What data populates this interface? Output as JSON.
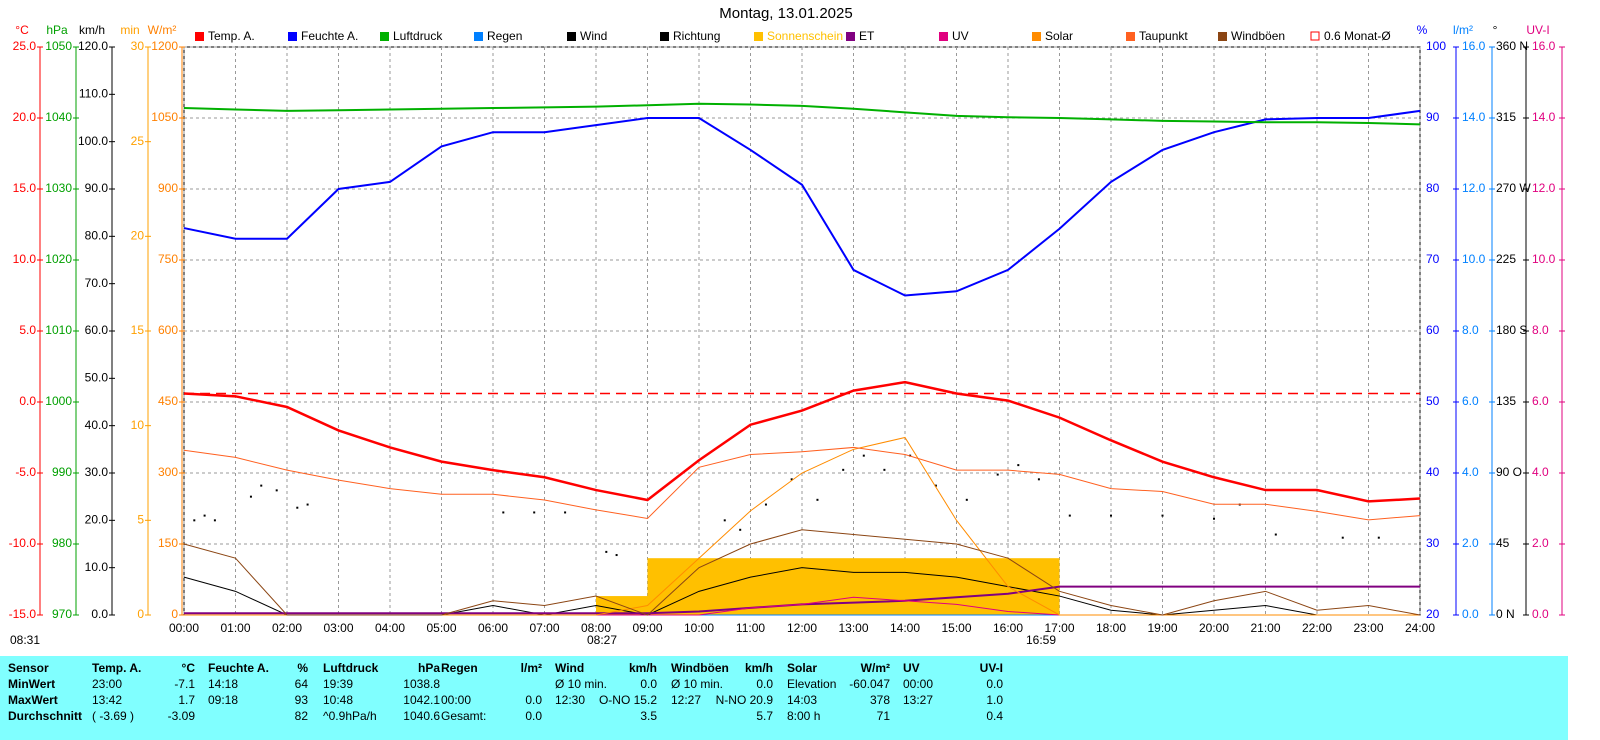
{
  "chart_data": {
    "type": "line",
    "title": "Montag, 13.01.2025",
    "x": [
      0,
      1,
      2,
      3,
      4,
      5,
      6,
      7,
      8,
      9,
      10,
      11,
      12,
      13,
      14,
      15,
      16,
      17,
      18,
      19,
      20,
      21,
      22,
      23,
      24
    ],
    "xlim": [
      0,
      24
    ],
    "xticks": [
      {
        "value": 0,
        "label": "00:00"
      },
      {
        "value": 1,
        "label": "01:00"
      },
      {
        "value": 2,
        "label": "02:00"
      },
      {
        "value": 3,
        "label": "03:00"
      },
      {
        "value": 4,
        "label": "04:00"
      },
      {
        "value": 5,
        "label": "05:00"
      },
      {
        "value": 6,
        "label": "06:00"
      },
      {
        "value": 7,
        "label": "07:00"
      },
      {
        "value": 8,
        "label": "08:00"
      },
      {
        "value": 9,
        "label": "09:00"
      },
      {
        "value": 10,
        "label": "10:00"
      },
      {
        "value": 11,
        "label": "11:00"
      },
      {
        "value": 12,
        "label": "12:00"
      },
      {
        "value": 13,
        "label": "13:00"
      },
      {
        "value": 14,
        "label": "14:00"
      },
      {
        "value": 15,
        "label": "15:00"
      },
      {
        "value": 16,
        "label": "16:00"
      },
      {
        "value": 17,
        "label": "17:00"
      },
      {
        "value": 18,
        "label": "18:00"
      },
      {
        "value": 19,
        "label": "19:00"
      },
      {
        "value": 20,
        "label": "20:00"
      },
      {
        "value": 21,
        "label": "21:00"
      },
      {
        "value": 22,
        "label": "22:00"
      },
      {
        "value": 23,
        "label": "23:00"
      },
      {
        "value": 24,
        "label": "24:00"
      }
    ],
    "grid": true,
    "axes": [
      {
        "unit": "°C",
        "side": "left",
        "color": "#ff0000",
        "ylim": [
          -15,
          25
        ],
        "yticks": [
          {
            "value": -15,
            "label": "-15.0"
          },
          {
            "value": -10,
            "label": "-10.0"
          },
          {
            "value": -5,
            "label": "-5.0"
          },
          {
            "value": 0,
            "label": "0.0"
          },
          {
            "value": 5,
            "label": "5.0"
          },
          {
            "value": 10,
            "label": "10.0"
          },
          {
            "value": 15,
            "label": "15.0"
          },
          {
            "value": 20,
            "label": "20.0"
          },
          {
            "value": 25,
            "label": "25.0"
          }
        ]
      },
      {
        "unit": "hPa",
        "side": "left",
        "color": "#00a000",
        "ylim": [
          970,
          1050
        ],
        "yticks": [
          970,
          980,
          990,
          1000,
          1010,
          1020,
          1030,
          1040,
          1050
        ]
      },
      {
        "unit": "km/h",
        "side": "left",
        "color": "#000000",
        "ylim": [
          0,
          120
        ],
        "yticks": [
          {
            "value": 0,
            "label": "0.0"
          },
          {
            "value": 10,
            "label": "10.0"
          },
          {
            "value": 20,
            "label": "20.0"
          },
          {
            "value": 30,
            "label": "30.0"
          },
          {
            "value": 40,
            "label": "40.0"
          },
          {
            "value": 50,
            "label": "50.0"
          },
          {
            "value": 60,
            "label": "60.0"
          },
          {
            "value": 70,
            "label": "70.0"
          },
          {
            "value": 80,
            "label": "80.0"
          },
          {
            "value": 90,
            "label": "90.0"
          },
          {
            "value": 100,
            "label": "100.0"
          },
          {
            "value": 110,
            "label": "110.0"
          },
          {
            "value": 120,
            "label": "120.0"
          }
        ]
      },
      {
        "unit": "min",
        "side": "left",
        "color": "#ffa000",
        "ylim": [
          0,
          30
        ],
        "yticks": [
          0,
          5,
          10,
          15,
          20,
          25,
          30
        ]
      },
      {
        "unit": "W/m²",
        "side": "left",
        "color": "#ff8000",
        "ylim": [
          0,
          1200
        ],
        "yticks": [
          0,
          150,
          300,
          450,
          600,
          750,
          900,
          1050,
          1200
        ]
      },
      {
        "unit": "%",
        "side": "right",
        "color": "#0000ff",
        "ylim": [
          20,
          100
        ],
        "yticks": [
          20,
          30,
          40,
          50,
          60,
          70,
          80,
          90,
          100
        ]
      },
      {
        "unit": "l/m²",
        "side": "right",
        "color": "#0080ff",
        "ylim": [
          0,
          16
        ],
        "yticks": [
          {
            "value": 0,
            "label": "0.0"
          },
          {
            "value": 2,
            "label": "2.0"
          },
          {
            "value": 4,
            "label": "4.0"
          },
          {
            "value": 6,
            "label": "6.0"
          },
          {
            "value": 8,
            "label": "8.0"
          },
          {
            "value": 10,
            "label": "10.0"
          },
          {
            "value": 12,
            "label": "12.0"
          },
          {
            "value": 14,
            "label": "14.0"
          },
          {
            "value": 16,
            "label": "16.0"
          }
        ]
      },
      {
        "unit": "°",
        "side": "right",
        "color": "#000000",
        "ylim": [
          0,
          360
        ],
        "yticks": [
          {
            "value": 0,
            "label": "0 N"
          },
          45,
          {
            "value": 90,
            "label": "90 O"
          },
          135,
          {
            "value": 180,
            "label": "180 S"
          },
          225,
          {
            "value": 270,
            "label": "270 W"
          },
          315,
          {
            "value": 360,
            "label": "360 N"
          }
        ]
      },
      {
        "unit": "UV-I",
        "side": "right",
        "color": "#e0007f",
        "ylim": [
          0,
          16
        ],
        "yticks": [
          {
            "value": 0,
            "label": "0.0"
          },
          {
            "value": 2,
            "label": "2.0"
          },
          {
            "value": 4,
            "label": "4.0"
          },
          {
            "value": 6,
            "label": "6.0"
          },
          {
            "value": 8,
            "label": "8.0"
          },
          {
            "value": 10,
            "label": "10.0"
          },
          {
            "value": 12,
            "label": "12.0"
          },
          {
            "value": 14,
            "label": "14.0"
          },
          {
            "value": 16,
            "label": "16.0"
          }
        ]
      }
    ],
    "series": [
      {
        "name": "Temp. A.",
        "color": "#ff0000",
        "axis": "°C",
        "values": [
          0.6,
          0.4,
          -0.35,
          -2.0,
          -3.2,
          -4.2,
          -4.8,
          -5.3,
          -6.2,
          -6.9,
          -4.1,
          -1.6,
          -0.6,
          0.8,
          1.4,
          0.6,
          0.1,
          -1.1,
          -2.7,
          -4.2,
          -5.3,
          -6.2,
          -6.2,
          -7.0,
          -6.8
        ]
      },
      {
        "name": "Feuchte A.",
        "color": "#0000ff",
        "axis": "%",
        "values": [
          74.5,
          73,
          73,
          80,
          81,
          86,
          88,
          88,
          89,
          90,
          90,
          85.5,
          80.6,
          68.6,
          65,
          65.6,
          68.6,
          74.4,
          81,
          85.5,
          88,
          89.8,
          90,
          90,
          91
        ]
      },
      {
        "name": "Luftdruck",
        "color": "#00b000",
        "axis": "hPa",
        "values": [
          1041.4,
          1041.2,
          1041.0,
          1041.1,
          1041.2,
          1041.3,
          1041.4,
          1041.5,
          1041.6,
          1041.8,
          1042.0,
          1041.9,
          1041.7,
          1041.3,
          1040.8,
          1040.3,
          1040.1,
          1040.0,
          1039.8,
          1039.6,
          1039.5,
          1039.4,
          1039.4,
          1039.3,
          1039.1
        ]
      },
      {
        "name": "Regen",
        "color": "#0080ff",
        "axis": "l/m²",
        "values": [
          0,
          0,
          0,
          0,
          0,
          0,
          0,
          0,
          0,
          0,
          0,
          0,
          0,
          0,
          0,
          0,
          0,
          0,
          0,
          0,
          0,
          0,
          0,
          0,
          0
        ]
      },
      {
        "name": "Wind",
        "color": "#000000",
        "axis": "km/h",
        "values": [
          8,
          5,
          0,
          0,
          0,
          0,
          2,
          0,
          2,
          0,
          5,
          8,
          10,
          9,
          9,
          8,
          6,
          4,
          1,
          0,
          1,
          2,
          0,
          0,
          0
        ]
      },
      {
        "name": "Richtung",
        "color": "#000000",
        "axis": "°",
        "type": "scatter",
        "x": [
          0.2,
          0.4,
          0.6,
          1.3,
          1.5,
          1.8,
          2.2,
          2.4,
          6.2,
          6.8,
          7.4,
          8.2,
          8.4,
          10.5,
          10.8,
          11.3,
          11.8,
          12.3,
          12.8,
          13.2,
          13.6,
          14.1,
          14.6,
          15.2,
          15.8,
          16.2,
          16.6,
          17.2,
          18.0,
          19.0,
          20.0,
          20.5,
          21.2,
          22.5,
          23.2
        ],
        "values": [
          60,
          63,
          60,
          75,
          82,
          79,
          68,
          70,
          65,
          65,
          65,
          40,
          38,
          60,
          54,
          70,
          86,
          73,
          92,
          101,
          92,
          101,
          82,
          73,
          89,
          95,
          86,
          63,
          63,
          63,
          61,
          70,
          51,
          49,
          49
        ]
      },
      {
        "name": "Sonnenschein",
        "color": "#ffc000",
        "axis": "min",
        "type": "bar",
        "values": [
          0,
          0,
          0,
          0,
          0,
          0,
          0,
          0,
          1,
          3,
          3,
          3,
          3,
          3,
          3,
          3,
          3,
          0,
          0,
          0,
          0,
          0,
          0,
          0,
          0
        ]
      },
      {
        "name": "ET",
        "color": "#800080",
        "axis": "l/m²",
        "values": [
          0.05,
          0.05,
          0.05,
          0.05,
          0.05,
          0.05,
          0.05,
          0.05,
          0.05,
          0.05,
          0.1,
          0.2,
          0.3,
          0.35,
          0.4,
          0.5,
          0.6,
          0.8,
          0.8,
          0.8,
          0.8,
          0.8,
          0.8,
          0.8,
          0.8
        ]
      },
      {
        "name": "UV",
        "color": "#e0007f",
        "axis": "UV-I",
        "values": [
          0,
          0,
          0,
          0,
          0,
          0,
          0,
          0,
          0,
          0,
          0,
          0.2,
          0.3,
          0.5,
          0.4,
          0.3,
          0.1,
          0,
          0,
          0,
          0,
          0,
          0,
          0,
          0
        ]
      },
      {
        "name": "Solar",
        "color": "#ff8c00",
        "axis": "W/m²",
        "values": [
          0,
          0,
          0,
          0,
          0,
          0,
          0,
          0,
          0,
          20,
          120,
          220,
          300,
          350,
          375,
          200,
          60,
          0,
          0,
          0,
          0,
          0,
          0,
          0,
          0
        ]
      },
      {
        "name": "Taupunkt",
        "color": "#ff6020",
        "axis": "°C",
        "values": [
          -3.4,
          -3.9,
          -4.8,
          -5.5,
          -6.1,
          -6.5,
          -6.5,
          -6.9,
          -7.6,
          -8.2,
          -4.6,
          -3.7,
          -3.5,
          -3.2,
          -3.7,
          -4.8,
          -4.8,
          -5.1,
          -6.1,
          -6.3,
          -7.2,
          -7.2,
          -7.7,
          -8.3,
          -8.0
        ]
      },
      {
        "name": "Windböen",
        "color": "#8b4513",
        "axis": "km/h",
        "values": [
          15,
          12,
          0,
          0,
          0,
          0,
          3,
          2,
          4,
          0,
          10,
          15,
          18,
          17,
          16,
          15,
          12,
          5,
          2,
          0,
          3,
          5,
          1,
          2,
          0
        ]
      }
    ],
    "reference": {
      "name": "0.6 Monat-Ø",
      "value": 0.6,
      "axis": "°C",
      "color": "#ff0000"
    },
    "annotations": [
      "08:31",
      "08:27",
      "16:59"
    ]
  },
  "table": {
    "rows": [
      [
        "Sensor",
        "Temp. A.",
        "°C",
        "Feuchte A.",
        "%",
        "Luftdruck",
        "hPa",
        "Regen",
        "l/m²",
        "Wind",
        "km/h",
        "Windböen",
        "km/h",
        "Solar",
        "W/m²",
        "UV",
        "UV-I"
      ],
      [
        "MinWert",
        "23:00",
        "-7.1",
        "14:18",
        "64",
        "19:39",
        "1038.8",
        null,
        null,
        "Ø 10 min.",
        "0.0",
        "Ø 10 min.",
        "0.0",
        "Elevation",
        "-60.047",
        "00:00",
        "0.0"
      ],
      [
        "MaxWert",
        "13:42",
        "1.7",
        "09:18",
        "93",
        "10:48",
        "1042.1",
        "00:00",
        "0.0",
        "12:30",
        "O-NO 15.2",
        "12:27",
        "N-NO 20.9",
        "14:03",
        "378",
        "13:27",
        "1.0"
      ],
      [
        "Durchschnitt",
        "( -3.69 )",
        "-3.09",
        null,
        "82",
        "^0.9hPa/h",
        "1040.6",
        "Gesamt:",
        "0.0",
        null,
        "3.5",
        null,
        "5.7",
        "8:00 h",
        "71",
        null,
        "0.4"
      ]
    ]
  }
}
